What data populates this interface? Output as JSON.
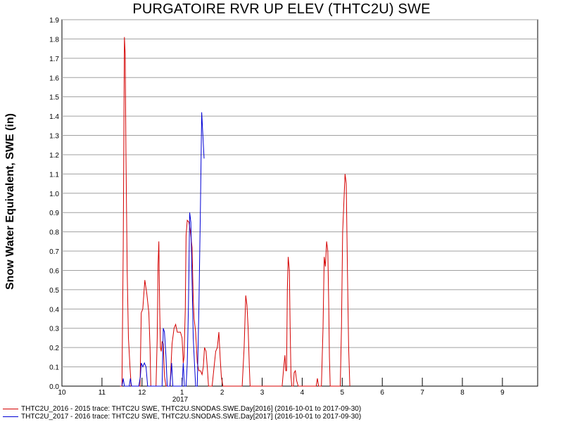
{
  "chart_data": {
    "type": "line",
    "title": "PURGATOIRE RVR UP ELEV (THTC2U) SWE",
    "ylabel": "Snow Water Equivalent, SWE (in)",
    "xlabel": "",
    "ylim": [
      0,
      1.9
    ],
    "y_ticks": [
      "0.0",
      "0.1",
      "0.2",
      "0.3",
      "0.4",
      "0.5",
      "0.6",
      "0.7",
      "0.8",
      "0.9",
      "1.0",
      "1.1",
      "1.2",
      "1.3",
      "1.4",
      "1.5",
      "1.6",
      "1.7",
      "1.8",
      "1.9"
    ],
    "x_ticks": [
      "10",
      "11",
      "12",
      "1",
      "2",
      "3",
      "4",
      "5",
      "6",
      "7",
      "8",
      "9"
    ],
    "x_year_label": "2017",
    "grid": true,
    "legend_placement": "bottom",
    "series": [
      {
        "name": "THTC2U_2016 - 2015 trace: THTC2U SWE, THTC2U.SNODAS.SWE.Day[2016] (2016-10-01 to 2017-09-30)",
        "color": "#d40000",
        "points": [
          [
            1.45,
            0
          ],
          [
            1.5,
            0.0
          ],
          [
            1.53,
            0.72
          ],
          [
            1.56,
            1.81
          ],
          [
            1.58,
            1.72
          ],
          [
            1.6,
            1.2
          ],
          [
            1.63,
            0.6
          ],
          [
            1.66,
            0.25
          ],
          [
            1.7,
            0.1
          ],
          [
            1.73,
            0
          ],
          [
            1.95,
            0
          ],
          [
            1.98,
            0.38
          ],
          [
            2.02,
            0.4
          ],
          [
            2.07,
            0.55
          ],
          [
            2.12,
            0.48
          ],
          [
            2.17,
            0.38
          ],
          [
            2.2,
            0.2
          ],
          [
            2.22,
            0
          ],
          [
            2.35,
            0
          ],
          [
            2.38,
            0.25
          ],
          [
            2.4,
            0.63
          ],
          [
            2.42,
            0.75
          ],
          [
            2.44,
            0.42
          ],
          [
            2.46,
            0.2
          ],
          [
            2.48,
            0.18
          ],
          [
            2.5,
            0.23
          ],
          [
            2.53,
            0.22
          ],
          [
            2.56,
            0.05
          ],
          [
            2.6,
            0
          ],
          [
            2.7,
            0
          ],
          [
            2.75,
            0.22
          ],
          [
            2.8,
            0.3
          ],
          [
            2.84,
            0.32
          ],
          [
            2.88,
            0.28
          ],
          [
            2.92,
            0.28
          ],
          [
            2.96,
            0.28
          ],
          [
            3.0,
            0.25
          ],
          [
            3.03,
            0.12
          ],
          [
            3.05,
            0.15
          ],
          [
            3.08,
            0.4
          ],
          [
            3.1,
            0.78
          ],
          [
            3.13,
            0.86
          ],
          [
            3.17,
            0.85
          ],
          [
            3.21,
            0.8
          ],
          [
            3.25,
            0.72
          ],
          [
            3.28,
            0.45
          ],
          [
            3.3,
            0.35
          ],
          [
            3.34,
            0.28
          ],
          [
            3.38,
            0.12
          ],
          [
            3.42,
            0.08
          ],
          [
            3.46,
            0.08
          ],
          [
            3.5,
            0.06
          ],
          [
            3.53,
            0.1
          ],
          [
            3.56,
            0.2
          ],
          [
            3.6,
            0.18
          ],
          [
            3.63,
            0.1
          ],
          [
            3.66,
            0
          ],
          [
            3.75,
            0
          ],
          [
            3.8,
            0.1
          ],
          [
            3.84,
            0.18
          ],
          [
            3.88,
            0.2
          ],
          [
            3.92,
            0.28
          ],
          [
            3.95,
            0.15
          ],
          [
            3.98,
            0.05
          ],
          [
            4.02,
            0
          ],
          [
            4.5,
            0
          ],
          [
            4.55,
            0.2
          ],
          [
            4.59,
            0.47
          ],
          [
            4.62,
            0.42
          ],
          [
            4.65,
            0.3
          ],
          [
            4.68,
            0.1
          ],
          [
            4.7,
            0
          ],
          [
            5.5,
            0
          ],
          [
            5.54,
            0.1
          ],
          [
            5.57,
            0.16
          ],
          [
            5.59,
            0.08
          ],
          [
            5.61,
            0.08
          ],
          [
            5.63,
            0.5
          ],
          [
            5.65,
            0.67
          ],
          [
            5.68,
            0.6
          ],
          [
            5.7,
            0.3
          ],
          [
            5.72,
            0.05
          ],
          [
            5.74,
            0
          ],
          [
            5.78,
            0
          ],
          [
            5.8,
            0.07
          ],
          [
            5.83,
            0.08
          ],
          [
            5.86,
            0.03
          ],
          [
            5.9,
            0
          ],
          [
            6.35,
            0
          ],
          [
            6.38,
            0.04
          ],
          [
            6.41,
            0
          ],
          [
            6.48,
            0
          ],
          [
            6.52,
            0.3
          ],
          [
            6.55,
            0.67
          ],
          [
            6.58,
            0.62
          ],
          [
            6.61,
            0.75
          ],
          [
            6.64,
            0.7
          ],
          [
            6.66,
            0.45
          ],
          [
            6.68,
            0.15
          ],
          [
            6.7,
            0
          ],
          [
            6.95,
            0
          ],
          [
            6.98,
            0.3
          ],
          [
            7.01,
            0.8
          ],
          [
            7.04,
            0.95
          ],
          [
            7.07,
            1.1
          ],
          [
            7.1,
            1.05
          ],
          [
            7.13,
            0.6
          ],
          [
            7.16,
            0.2
          ],
          [
            7.19,
            0
          ]
        ]
      },
      {
        "name": "THTC2U_2017 - 2016 trace: THTC2U SWE, THTC2U.SNODAS.SWE.Day[2017] (2016-10-01 to 2017-09-30)",
        "color": "#0000d4",
        "points": [
          [
            1.5,
            0
          ],
          [
            1.53,
            0.04
          ],
          [
            1.56,
            0
          ],
          [
            1.68,
            0
          ],
          [
            1.71,
            0.04
          ],
          [
            1.74,
            0
          ],
          [
            1.92,
            0
          ],
          [
            1.96,
            0.05
          ],
          [
            1.98,
            0.12
          ],
          [
            2.02,
            0.1
          ],
          [
            2.06,
            0.12
          ],
          [
            2.1,
            0.1
          ],
          [
            2.14,
            0
          ],
          [
            2.5,
            0
          ],
          [
            2.53,
            0.3
          ],
          [
            2.56,
            0.28
          ],
          [
            2.6,
            0.15
          ],
          [
            2.63,
            0
          ],
          [
            2.7,
            0
          ],
          [
            2.74,
            0.12
          ],
          [
            2.77,
            0
          ],
          [
            3.0,
            0
          ],
          [
            3.03,
            0.12
          ],
          [
            3.06,
            0
          ],
          [
            3.1,
            0
          ],
          [
            3.13,
            0.12
          ],
          [
            3.16,
            0.42
          ],
          [
            3.19,
            0.9
          ],
          [
            3.22,
            0.85
          ],
          [
            3.25,
            0.55
          ],
          [
            3.28,
            0.25
          ],
          [
            3.31,
            0.12
          ],
          [
            3.34,
            0
          ],
          [
            3.38,
            0
          ],
          [
            3.42,
            0.4
          ],
          [
            3.46,
            0.95
          ],
          [
            3.49,
            1.42
          ],
          [
            3.52,
            1.3
          ],
          [
            3.55,
            1.18
          ]
        ]
      }
    ]
  },
  "legend": [
    "THTC2U_2016 - 2015 trace: THTC2U SWE, THTC2U.SNODAS.SWE.Day[2016] (2016-10-01 to 2017-09-30)",
    "THTC2U_2017 - 2016 trace: THTC2U SWE, THTC2U.SNODAS.SWE.Day[2017] (2016-10-01 to 2017-09-30)"
  ]
}
